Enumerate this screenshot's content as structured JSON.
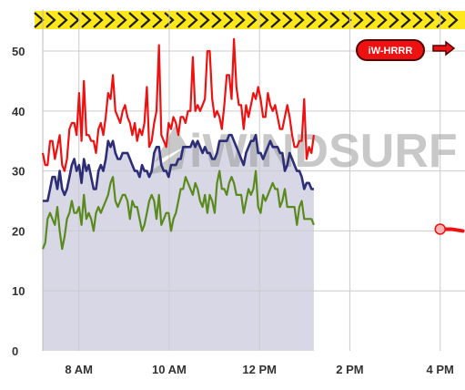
{
  "chart_data": {
    "type": "line",
    "title": "",
    "xlabel": "",
    "ylabel": "",
    "ylim": [
      0,
      57
    ],
    "x_range_hours": [
      7.2,
      11.2
    ],
    "x_ticks": [
      {
        "hour": 8,
        "label": "8 AM"
      },
      {
        "hour": 10,
        "label": "10 AM"
      },
      {
        "hour": 12,
        "label": "12 PM"
      },
      {
        "hour": 14,
        "label": "2 PM"
      },
      {
        "hour": 16,
        "label": "4 PM"
      }
    ],
    "y_ticks": [
      0,
      10,
      20,
      30,
      40,
      50
    ],
    "grid": true,
    "legend": {
      "label": "iW-HRRR",
      "placement": "top-right"
    },
    "watermark": "iWINDSURF",
    "series": [
      {
        "role": "gust",
        "color": "#ee1111",
        "x_start": 7.2,
        "x_step": 0.0536,
        "values": [
          33,
          31,
          31,
          35,
          35,
          32,
          34,
          36,
          31,
          30,
          32,
          37,
          38,
          38,
          36,
          43,
          35,
          45,
          36,
          36,
          35,
          35,
          33,
          37,
          38,
          36,
          39,
          43,
          42,
          46,
          40,
          39,
          38,
          40,
          41,
          39,
          38,
          36,
          38,
          35,
          37,
          36,
          38,
          44,
          34,
          35,
          38,
          40,
          51,
          36,
          35,
          34,
          38,
          37,
          39,
          38,
          36,
          39,
          39,
          38,
          40,
          40,
          49,
          40,
          41,
          40,
          41,
          42,
          50,
          50,
          42,
          39,
          40,
          39,
          37,
          41,
          46,
          46,
          42,
          52,
          44,
          41,
          41,
          37,
          41,
          39,
          41,
          43,
          42,
          44,
          42,
          39,
          39,
          43,
          41,
          40,
          41,
          39,
          37,
          37,
          39,
          41,
          39,
          36,
          34,
          34,
          35,
          35,
          42,
          32,
          34,
          33,
          36
        ]
      },
      {
        "role": "average",
        "color": "#2d2d78",
        "x_start": 7.2,
        "x_step": 0.0536,
        "values": [
          25,
          25,
          25,
          27,
          29,
          29,
          27,
          30,
          27,
          26,
          27,
          29,
          31,
          32,
          30,
          31,
          28,
          32,
          30,
          31,
          29,
          27,
          27,
          30,
          31,
          30,
          32,
          35,
          34,
          35,
          33,
          32,
          32,
          33,
          33,
          33,
          32,
          31,
          30,
          30,
          29,
          31,
          30,
          30,
          29,
          30,
          33,
          34,
          34,
          31,
          30,
          30,
          29,
          31,
          31,
          31,
          32,
          32,
          34,
          34,
          34,
          34,
          35,
          34,
          35,
          34,
          33,
          34,
          33,
          33,
          32,
          32,
          33,
          35,
          35,
          35,
          35,
          36,
          36,
          35,
          34,
          33,
          32,
          31,
          33,
          34,
          35,
          35,
          36,
          33,
          33,
          32,
          33,
          34,
          35,
          34,
          34,
          34,
          33,
          33,
          30,
          31,
          33,
          32,
          31,
          30,
          30,
          29,
          27,
          28,
          28,
          27,
          27
        ]
      },
      {
        "role": "lull",
        "color": "#5a8a1e",
        "x_start": 7.2,
        "x_step": 0.0536,
        "values": [
          17,
          18,
          22,
          23,
          22,
          21,
          24,
          20,
          17,
          19,
          22,
          23,
          25,
          23,
          23,
          24,
          21,
          26,
          22,
          23,
          22,
          20,
          23,
          24,
          23,
          24,
          25,
          26,
          28,
          29,
          25,
          24,
          25,
          26,
          26,
          25,
          22,
          25,
          24,
          24,
          22,
          20,
          21,
          23,
          25,
          26,
          25,
          22,
          26,
          21,
          22,
          23,
          23,
          20,
          22,
          23,
          25,
          27,
          27,
          29,
          28,
          27,
          26,
          28,
          27,
          25,
          24,
          26,
          23,
          26,
          25,
          23,
          28,
          30,
          27,
          27,
          26,
          28,
          29,
          28,
          26,
          26,
          26,
          23,
          25,
          27,
          26,
          27,
          30,
          24,
          23,
          26,
          25,
          26,
          27,
          28,
          27,
          27,
          24,
          25,
          27,
          24,
          24,
          24,
          24,
          21,
          24,
          25,
          22,
          22,
          22,
          22,
          21
        ]
      },
      {
        "role": "iW-HRRR forecast",
        "color": "#ee1111",
        "points": [
          [
            16.0,
            20.3
          ],
          [
            16.25,
            20.3
          ],
          [
            16.5,
            20.0
          ]
        ]
      }
    ]
  },
  "colors": {
    "area_fill": "#d7d7e6",
    "grid": "#cccccc",
    "badge_fill": "#ee1111",
    "badge_border": "#550000",
    "banner_fill": "#ffe81a",
    "banner_line": "#1c1c1c"
  },
  "icons": {
    "banner": "chevron-banner-icon",
    "forecast_arrow": "arrow-right-icon"
  }
}
